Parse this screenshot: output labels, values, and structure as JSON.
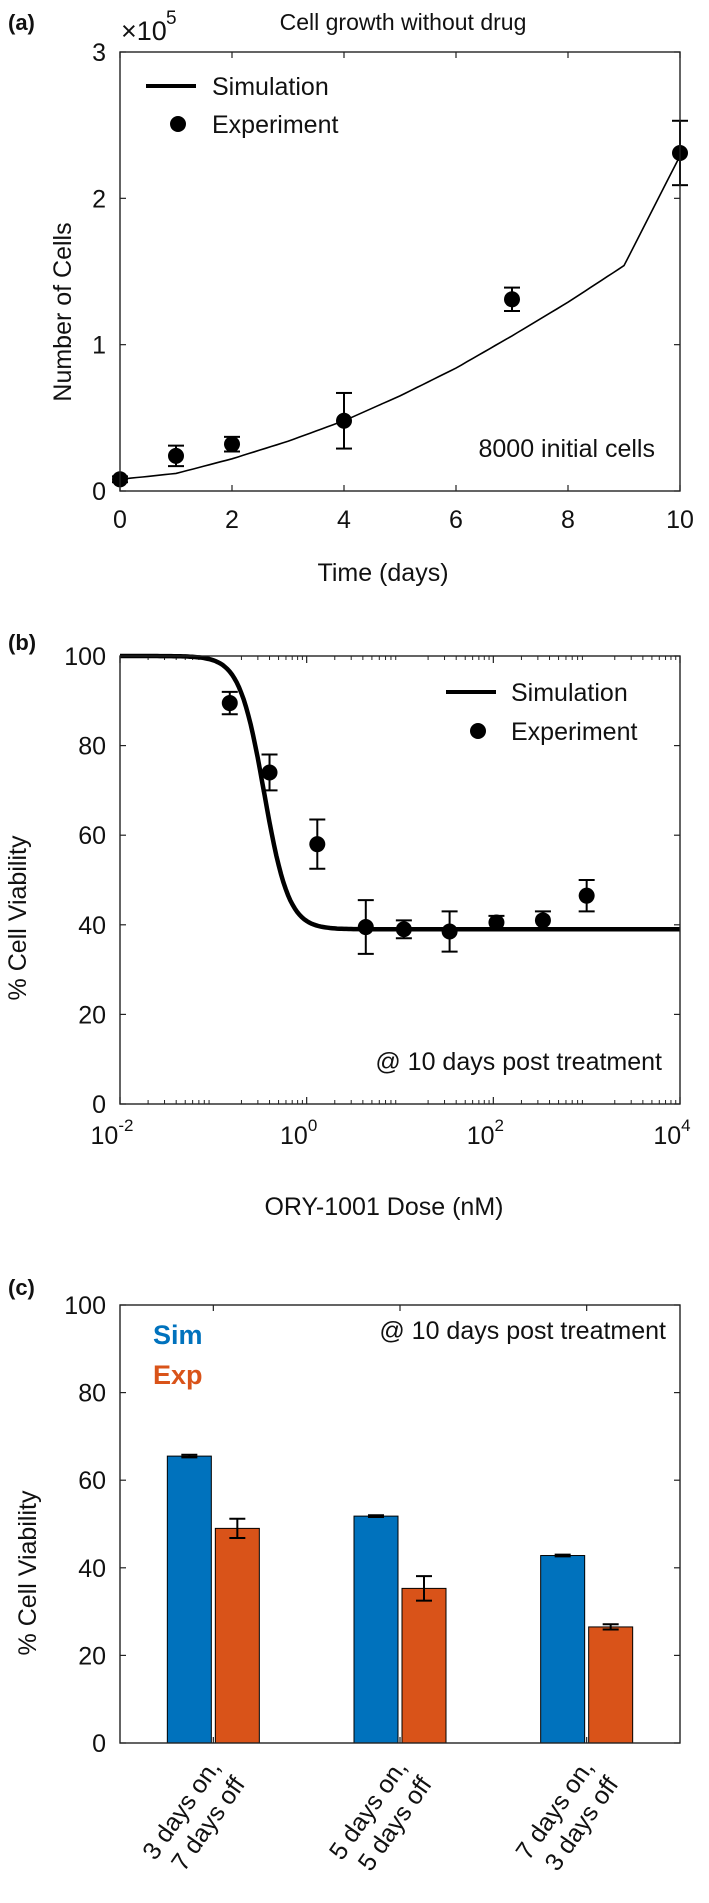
{
  "chart_data": [
    {
      "panel": "(a)",
      "type": "line",
      "title": "Cell growth without drug",
      "exponent_label": "×10",
      "exponent_power": "5",
      "xlabel": "Time (days)",
      "ylabel": "Number of Cells",
      "xlim": [
        0,
        10
      ],
      "ylim": [
        0,
        3
      ],
      "xticks": [
        0,
        2,
        4,
        6,
        8,
        10
      ],
      "yticks": [
        0,
        1,
        2,
        3
      ],
      "annotation": "8000 initial cells",
      "legend": {
        "position": "top-left",
        "entries": [
          "Simulation",
          "Experiment"
        ]
      },
      "series": [
        {
          "name": "Simulation",
          "kind": "line",
          "x": [
            0,
            1,
            2,
            3,
            4,
            5,
            6,
            7,
            8,
            9,
            10
          ],
          "y": [
            0.08,
            0.12,
            0.22,
            0.34,
            0.48,
            0.65,
            0.84,
            1.06,
            1.29,
            1.54,
            2.29
          ]
        },
        {
          "name": "Experiment",
          "kind": "points",
          "x": [
            0,
            1,
            2,
            4,
            7,
            10
          ],
          "y": [
            0.08,
            0.24,
            0.32,
            0.48,
            1.31,
            2.31
          ],
          "err": [
            0.02,
            0.07,
            0.05,
            0.19,
            0.08,
            0.22
          ]
        }
      ]
    },
    {
      "panel": "(b)",
      "type": "line",
      "title": "",
      "xlabel": "ORY-1001 Dose (nM)",
      "ylabel": "% Cell Viability",
      "xscale": "log",
      "xlim_exp": [
        -2,
        4
      ],
      "ylim": [
        0,
        100
      ],
      "xticks_exp": [
        -2,
        0,
        2,
        4
      ],
      "yticks": [
        0,
        20,
        40,
        60,
        80,
        100
      ],
      "annotation": "@ 10 days post treatment",
      "legend": {
        "position": "top-right",
        "entries": [
          "Simulation",
          "Experiment"
        ]
      },
      "series": [
        {
          "name": "Simulation",
          "kind": "sigmoid",
          "top": 100,
          "bottom": 39,
          "ec50": 0.35,
          "hill": 3.3
        },
        {
          "name": "Experiment",
          "kind": "points",
          "x": [
            0.15,
            0.4,
            1.3,
            4.3,
            11,
            34,
            108,
            340,
            1000
          ],
          "y": [
            89.5,
            74,
            58,
            39.5,
            39,
            38.5,
            40.5,
            41,
            46.5
          ],
          "err": [
            2.5,
            4,
            5.5,
            6,
            2,
            4.5,
            1.5,
            2,
            3.5
          ]
        }
      ]
    },
    {
      "panel": "(c)",
      "type": "bar",
      "title": "",
      "xlabel": "",
      "ylabel": "% Cell Viability",
      "ylim": [
        0,
        100
      ],
      "yticks": [
        0,
        20,
        40,
        60,
        80,
        100
      ],
      "annotation": "@ 10 days post treatment",
      "categories": [
        [
          "3 days on,",
          "7 days off"
        ],
        [
          "5 days on,",
          "5 days off"
        ],
        [
          "7 days on,",
          "3 days off"
        ]
      ],
      "legend": {
        "position": "top-left",
        "entries": [
          "Sim",
          "Exp"
        ]
      },
      "series": [
        {
          "name": "Sim",
          "color": "#0072BD",
          "values": [
            65.5,
            51.8,
            42.8
          ],
          "err": [
            0.3,
            0.2,
            0.2
          ]
        },
        {
          "name": "Exp",
          "color": "#D95319",
          "values": [
            49,
            35.3,
            26.5
          ],
          "err": [
            2.2,
            2.8,
            0.6
          ]
        }
      ]
    }
  ]
}
